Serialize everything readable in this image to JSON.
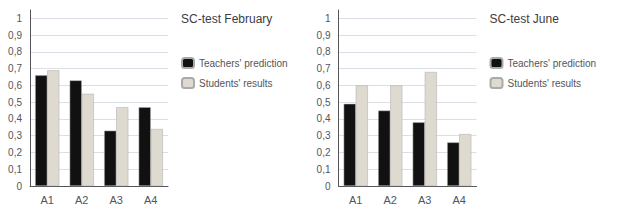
{
  "chart_data": [
    {
      "type": "bar",
      "title": "SC-test February",
      "categories": [
        "A1",
        "A2",
        "A3",
        "A4"
      ],
      "series": [
        {
          "name": "Teachers' prediction",
          "color": "#111111",
          "values": [
            0.66,
            0.63,
            0.33,
            0.47
          ]
        },
        {
          "name": "Students' results",
          "color": "#dedad0",
          "values": [
            0.69,
            0.55,
            0.47,
            0.34
          ]
        }
      ],
      "ylim": [
        0,
        1.05
      ],
      "yticks": [
        0,
        {
          "value": 0.1,
          "label": "0,1"
        },
        {
          "value": 0.2,
          "label": "0,2"
        },
        {
          "value": 0.3,
          "label": "0,3"
        },
        {
          "value": 0.4,
          "label": "0,4"
        },
        {
          "value": 0.5,
          "label": "0,5"
        },
        {
          "value": 0.6,
          "label": "0,6"
        },
        {
          "value": 0.7,
          "label": "0,7"
        },
        {
          "value": 0.8,
          "label": "0,8"
        },
        {
          "value": 0.9,
          "label": "0,9"
        },
        1
      ],
      "grid": true,
      "legend": "right"
    },
    {
      "type": "bar",
      "title": "SC-test June",
      "categories": [
        "A1",
        "A2",
        "A3",
        "A4"
      ],
      "series": [
        {
          "name": "Teachers' prediction",
          "color": "#111111",
          "values": [
            0.49,
            0.45,
            0.38,
            0.26
          ]
        },
        {
          "name": "Students' results",
          "color": "#dedad0",
          "values": [
            0.6,
            0.6,
            0.68,
            0.31
          ]
        }
      ],
      "ylim": [
        0,
        1.05
      ],
      "yticks": [
        0,
        {
          "value": 0.1,
          "label": "0,1"
        },
        {
          "value": 0.2,
          "label": "0,2"
        },
        {
          "value": 0.3,
          "label": "0,3"
        },
        {
          "value": 0.4,
          "label": "0,4"
        },
        {
          "value": 0.5,
          "label": "0,5"
        },
        {
          "value": 0.6,
          "label": "0,6"
        },
        {
          "value": 0.7,
          "label": "0,7"
        },
        {
          "value": 0.8,
          "label": "0,8"
        },
        {
          "value": 0.9,
          "label": "0,9"
        },
        1
      ],
      "grid": true,
      "legend": "right"
    }
  ]
}
